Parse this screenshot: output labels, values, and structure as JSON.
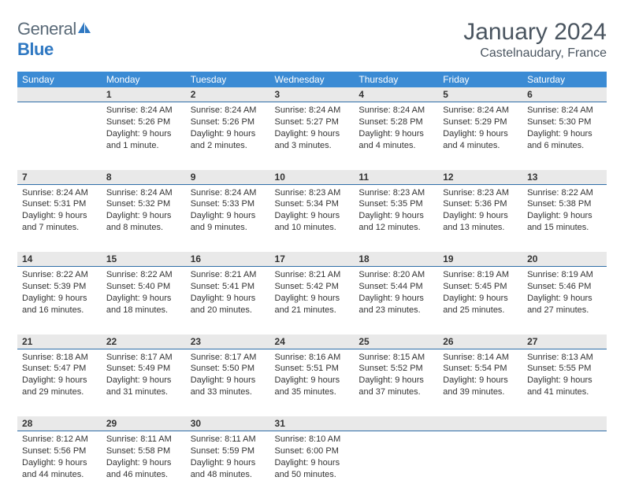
{
  "logo": {
    "part1": "General",
    "part2": "Blue"
  },
  "title": "January 2024",
  "location": "Castelnaudary, France",
  "colors": {
    "header_bg": "#3b8bd4",
    "daynum_bg": "#e9e9e9",
    "daynum_border": "#2f6ea8",
    "text": "#333333",
    "title_color": "#4a5560"
  },
  "weekdays": [
    "Sunday",
    "Monday",
    "Tuesday",
    "Wednesday",
    "Thursday",
    "Friday",
    "Saturday"
  ],
  "weeks": [
    [
      null,
      {
        "n": "1",
        "sr": "Sunrise: 8:24 AM",
        "ss": "Sunset: 5:26 PM",
        "dl": "Daylight: 9 hours and 1 minute."
      },
      {
        "n": "2",
        "sr": "Sunrise: 8:24 AM",
        "ss": "Sunset: 5:26 PM",
        "dl": "Daylight: 9 hours and 2 minutes."
      },
      {
        "n": "3",
        "sr": "Sunrise: 8:24 AM",
        "ss": "Sunset: 5:27 PM",
        "dl": "Daylight: 9 hours and 3 minutes."
      },
      {
        "n": "4",
        "sr": "Sunrise: 8:24 AM",
        "ss": "Sunset: 5:28 PM",
        "dl": "Daylight: 9 hours and 4 minutes."
      },
      {
        "n": "5",
        "sr": "Sunrise: 8:24 AM",
        "ss": "Sunset: 5:29 PM",
        "dl": "Daylight: 9 hours and 4 minutes."
      },
      {
        "n": "6",
        "sr": "Sunrise: 8:24 AM",
        "ss": "Sunset: 5:30 PM",
        "dl": "Daylight: 9 hours and 6 minutes."
      }
    ],
    [
      {
        "n": "7",
        "sr": "Sunrise: 8:24 AM",
        "ss": "Sunset: 5:31 PM",
        "dl": "Daylight: 9 hours and 7 minutes."
      },
      {
        "n": "8",
        "sr": "Sunrise: 8:24 AM",
        "ss": "Sunset: 5:32 PM",
        "dl": "Daylight: 9 hours and 8 minutes."
      },
      {
        "n": "9",
        "sr": "Sunrise: 8:24 AM",
        "ss": "Sunset: 5:33 PM",
        "dl": "Daylight: 9 hours and 9 minutes."
      },
      {
        "n": "10",
        "sr": "Sunrise: 8:23 AM",
        "ss": "Sunset: 5:34 PM",
        "dl": "Daylight: 9 hours and 10 minutes."
      },
      {
        "n": "11",
        "sr": "Sunrise: 8:23 AM",
        "ss": "Sunset: 5:35 PM",
        "dl": "Daylight: 9 hours and 12 minutes."
      },
      {
        "n": "12",
        "sr": "Sunrise: 8:23 AM",
        "ss": "Sunset: 5:36 PM",
        "dl": "Daylight: 9 hours and 13 minutes."
      },
      {
        "n": "13",
        "sr": "Sunrise: 8:22 AM",
        "ss": "Sunset: 5:38 PM",
        "dl": "Daylight: 9 hours and 15 minutes."
      }
    ],
    [
      {
        "n": "14",
        "sr": "Sunrise: 8:22 AM",
        "ss": "Sunset: 5:39 PM",
        "dl": "Daylight: 9 hours and 16 minutes."
      },
      {
        "n": "15",
        "sr": "Sunrise: 8:22 AM",
        "ss": "Sunset: 5:40 PM",
        "dl": "Daylight: 9 hours and 18 minutes."
      },
      {
        "n": "16",
        "sr": "Sunrise: 8:21 AM",
        "ss": "Sunset: 5:41 PM",
        "dl": "Daylight: 9 hours and 20 minutes."
      },
      {
        "n": "17",
        "sr": "Sunrise: 8:21 AM",
        "ss": "Sunset: 5:42 PM",
        "dl": "Daylight: 9 hours and 21 minutes."
      },
      {
        "n": "18",
        "sr": "Sunrise: 8:20 AM",
        "ss": "Sunset: 5:44 PM",
        "dl": "Daylight: 9 hours and 23 minutes."
      },
      {
        "n": "19",
        "sr": "Sunrise: 8:19 AM",
        "ss": "Sunset: 5:45 PM",
        "dl": "Daylight: 9 hours and 25 minutes."
      },
      {
        "n": "20",
        "sr": "Sunrise: 8:19 AM",
        "ss": "Sunset: 5:46 PM",
        "dl": "Daylight: 9 hours and 27 minutes."
      }
    ],
    [
      {
        "n": "21",
        "sr": "Sunrise: 8:18 AM",
        "ss": "Sunset: 5:47 PM",
        "dl": "Daylight: 9 hours and 29 minutes."
      },
      {
        "n": "22",
        "sr": "Sunrise: 8:17 AM",
        "ss": "Sunset: 5:49 PM",
        "dl": "Daylight: 9 hours and 31 minutes."
      },
      {
        "n": "23",
        "sr": "Sunrise: 8:17 AM",
        "ss": "Sunset: 5:50 PM",
        "dl": "Daylight: 9 hours and 33 minutes."
      },
      {
        "n": "24",
        "sr": "Sunrise: 8:16 AM",
        "ss": "Sunset: 5:51 PM",
        "dl": "Daylight: 9 hours and 35 minutes."
      },
      {
        "n": "25",
        "sr": "Sunrise: 8:15 AM",
        "ss": "Sunset: 5:52 PM",
        "dl": "Daylight: 9 hours and 37 minutes."
      },
      {
        "n": "26",
        "sr": "Sunrise: 8:14 AM",
        "ss": "Sunset: 5:54 PM",
        "dl": "Daylight: 9 hours and 39 minutes."
      },
      {
        "n": "27",
        "sr": "Sunrise: 8:13 AM",
        "ss": "Sunset: 5:55 PM",
        "dl": "Daylight: 9 hours and 41 minutes."
      }
    ],
    [
      {
        "n": "28",
        "sr": "Sunrise: 8:12 AM",
        "ss": "Sunset: 5:56 PM",
        "dl": "Daylight: 9 hours and 44 minutes."
      },
      {
        "n": "29",
        "sr": "Sunrise: 8:11 AM",
        "ss": "Sunset: 5:58 PM",
        "dl": "Daylight: 9 hours and 46 minutes."
      },
      {
        "n": "30",
        "sr": "Sunrise: 8:11 AM",
        "ss": "Sunset: 5:59 PM",
        "dl": "Daylight: 9 hours and 48 minutes."
      },
      {
        "n": "31",
        "sr": "Sunrise: 8:10 AM",
        "ss": "Sunset: 6:00 PM",
        "dl": "Daylight: 9 hours and 50 minutes."
      },
      null,
      null,
      null
    ]
  ]
}
